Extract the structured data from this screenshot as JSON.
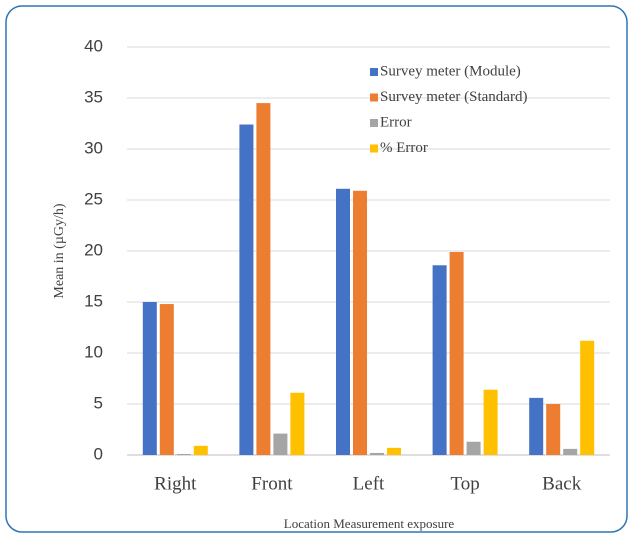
{
  "chart_data": {
    "type": "bar",
    "x_label": "Location Measurement exposure",
    "y_label": "Mean in (µGy/h)",
    "categories": [
      "Right",
      "Front",
      "Left",
      "Top",
      "Back"
    ],
    "series": [
      {
        "name": "Survey meter (Module)",
        "color": "#4472c4",
        "values": [
          15.0,
          32.4,
          26.1,
          18.6,
          5.6
        ]
      },
      {
        "name": "Survey meter (Standard)",
        "color": "#ed7d31",
        "values": [
          14.8,
          34.5,
          25.9,
          19.9,
          5.0
        ]
      },
      {
        "name": "Error",
        "color": "#a5a5a5",
        "values": [
          0.1,
          2.1,
          0.2,
          1.3,
          0.6
        ]
      },
      {
        "name": "% Error",
        "color": "#ffc000",
        "values": [
          0.9,
          6.1,
          0.7,
          6.4,
          11.2
        ]
      }
    ],
    "ylim": [
      0,
      40
    ],
    "yticks": [
      0,
      5,
      10,
      15,
      20,
      25,
      30,
      35,
      40
    ],
    "grid": true,
    "legend": "top-right"
  }
}
